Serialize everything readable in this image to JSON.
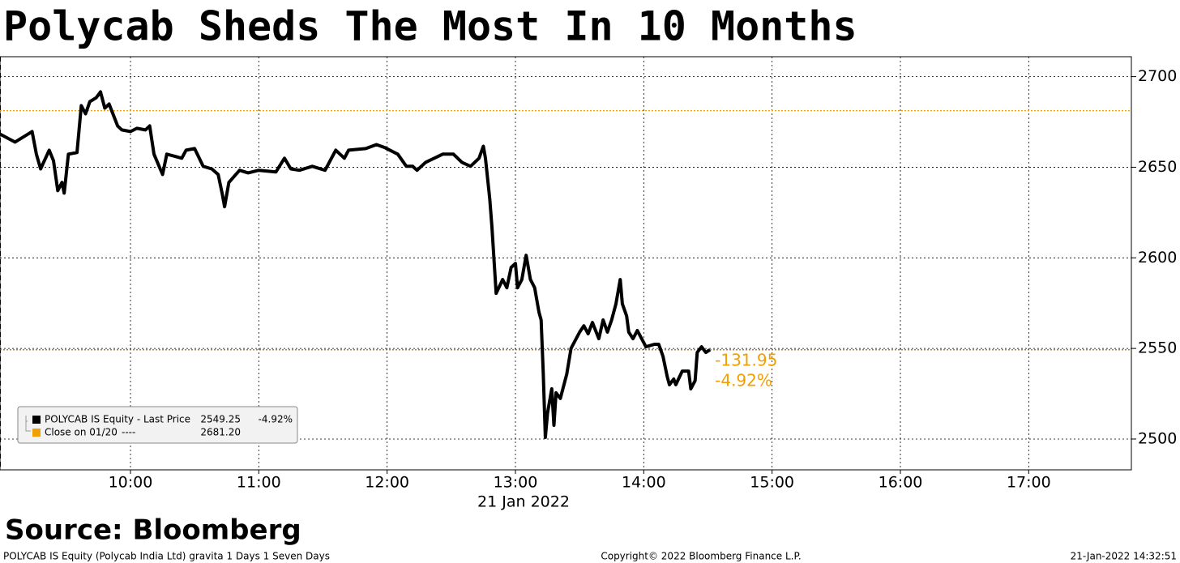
{
  "chart_data": {
    "type": "line",
    "title": "Polycab Sheds The Most In 10 Months",
    "x_label": "21 Jan 2022",
    "xlim": [
      539,
      1068
    ],
    "xticks": [
      {
        "value": 600,
        "label": "10:00"
      },
      {
        "value": 660,
        "label": "11:00"
      },
      {
        "value": 720,
        "label": "12:00"
      },
      {
        "value": 780,
        "label": "13:00"
      },
      {
        "value": 840,
        "label": "14:00"
      },
      {
        "value": 900,
        "label": "15:00"
      },
      {
        "value": 960,
        "label": "16:00"
      },
      {
        "value": 1020,
        "label": "17:00"
      }
    ],
    "ylim": [
      2483,
      2711
    ],
    "yticks": [
      2500,
      2550,
      2600,
      2650,
      2700
    ],
    "grid": true,
    "series": [
      {
        "name": "POLYCAB IS Equity - Last Price",
        "color": "#000000",
        "legend_price": "2549.25",
        "legend_change": "-4.92%",
        "x": [
          539,
          546,
          554,
          556,
          558,
          562,
          564,
          566,
          568,
          569,
          571,
          575,
          577,
          579,
          581,
          584,
          586,
          588,
          590,
          594,
          596,
          600,
          603,
          607,
          609,
          611,
          615,
          617,
          620,
          624,
          626,
          630,
          634,
          638,
          641,
          643,
          644,
          646,
          651,
          655,
          660,
          668,
          672,
          675,
          679,
          685,
          691,
          694,
          696,
          700,
          702,
          710,
          715,
          719,
          725,
          729,
          732,
          734,
          738,
          746,
          751,
          755,
          759,
          763,
          765,
          766,
          768,
          769,
          771,
          774,
          776,
          778,
          780,
          781,
          783,
          785,
          787,
          789,
          791,
          792,
          793,
          794,
          795,
          797,
          798,
          799,
          801,
          804,
          806,
          810,
          812,
          814,
          816,
          819,
          821,
          823,
          825,
          827,
          829,
          830,
          832,
          833,
          835,
          837,
          841,
          845,
          847,
          849,
          851,
          852,
          854,
          855,
          858,
          861,
          862,
          864,
          865,
          867,
          869,
          871
        ],
        "values": [
          2668.3,
          2663.9,
          2669.7,
          2657.2,
          2649.1,
          2659.4,
          2653.6,
          2637.1,
          2641.6,
          2635.7,
          2657.2,
          2658.1,
          2684.0,
          2679.5,
          2686.2,
          2688.4,
          2691.6,
          2682.6,
          2684.9,
          2672.8,
          2670.6,
          2669.7,
          2671.5,
          2670.6,
          2672.8,
          2657.2,
          2646.0,
          2657.2,
          2656.3,
          2655.0,
          2659.4,
          2660.3,
          2650.5,
          2649.1,
          2646.0,
          2634.9,
          2628.2,
          2641.6,
          2648.3,
          2646.9,
          2648.3,
          2647.4,
          2655.0,
          2649.1,
          2648.3,
          2650.5,
          2648.3,
          2655.0,
          2659.4,
          2655.0,
          2659.4,
          2660.3,
          2662.5,
          2660.8,
          2657.2,
          2650.5,
          2650.5,
          2648.3,
          2652.7,
          2657.2,
          2657.2,
          2652.7,
          2650.5,
          2655.0,
          2661.6,
          2655.0,
          2632.6,
          2617.0,
          2580.4,
          2588.0,
          2583.5,
          2594.7,
          2596.9,
          2583.5,
          2588.0,
          2601.4,
          2588.0,
          2583.5,
          2570.1,
          2565.7,
          2536.6,
          2500.9,
          2514.3,
          2527.7,
          2507.6,
          2525.5,
          2522.4,
          2535.8,
          2550.0,
          2559.0,
          2562.5,
          2558.1,
          2564.3,
          2555.4,
          2565.7,
          2559.0,
          2565.7,
          2574.6,
          2588.0,
          2574.6,
          2567.9,
          2559.0,
          2555.4,
          2559.9,
          2550.9,
          2552.3,
          2552.3,
          2545.6,
          2534.4,
          2530.0,
          2533.1,
          2530.0,
          2537.5,
          2537.5,
          2527.7,
          2532.2,
          2547.8,
          2550.9,
          2547.8,
          2549.25
        ]
      }
    ],
    "reference_line": {
      "name": "Close on 01/20",
      "legend_dash": "----",
      "value": 2681.2,
      "label": "2681.20",
      "color": "#f0a000"
    },
    "annotations": [
      "-131.95",
      "-4.92%"
    ],
    "annotation_color": "#f0a000",
    "source": "Source: Bloomberg",
    "footer_left": "POLYCAB IS Equity (Polycab India Ltd) gravita 1 Days 1 Seven Days",
    "footer_center": "Copyright© 2022 Bloomberg Finance L.P.",
    "footer_right": "21-Jan-2022 14:32:51"
  }
}
